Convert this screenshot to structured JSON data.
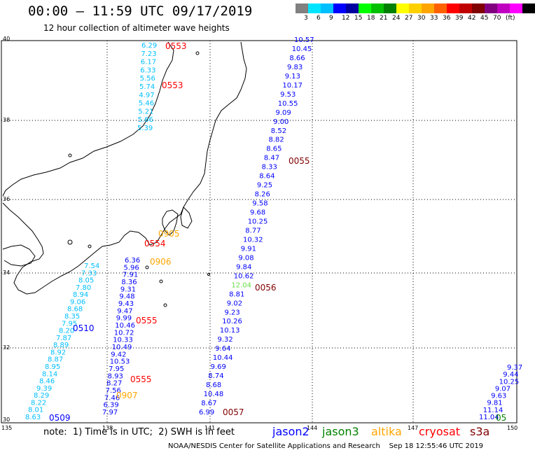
{
  "header": {
    "title": "00:00 – 11:59 UTC 09/17/2019",
    "subtitle": "12 hour collection of altimeter wave heights"
  },
  "legend": {
    "colors": [
      "#808080",
      "#00e5ff",
      "#00bfff",
      "#0000ff",
      "#0000a0",
      "#00ff00",
      "#00c000",
      "#008000",
      "#ffff00",
      "#ffd000",
      "#ffa500",
      "#ff6000",
      "#ff0000",
      "#c00000",
      "#800000",
      "#800080",
      "#c000c0",
      "#ff00ff",
      "#000000"
    ],
    "labels": [
      "3",
      "6",
      "9",
      "12",
      "15",
      "18",
      "21",
      "24",
      "27",
      "30",
      "33",
      "36",
      "39",
      "42",
      "45",
      "70",
      "(ft)"
    ]
  },
  "axes": {
    "lon_labels": [
      "135",
      "138",
      "141",
      "144",
      "147",
      "150"
    ],
    "lat_labels": [
      "40",
      "38",
      "36",
      "34",
      "32",
      "30"
    ]
  },
  "tracks": [
    {
      "color": "#00bfff",
      "values": [
        "6.29",
        "7.23",
        "6.17",
        "6.33",
        "5.56",
        "5.74",
        "4.97",
        "5.46",
        "5.21",
        "5.66",
        "5.39"
      ]
    },
    {
      "color": "#0000ff",
      "values": [
        "10.57",
        "10.45",
        "8.66",
        "9.83",
        "9.13",
        "10.17",
        "9.53",
        "10.55",
        "9.09",
        "9.00",
        "8.52",
        "8.82",
        "8.65",
        "8.47",
        "8.33",
        "8.64",
        "9.25",
        "8.26",
        "9.58",
        "9.68",
        "10.25",
        "8.77",
        "10.32",
        "9.91",
        "9.08",
        "9.84",
        "10.62",
        "12.04",
        "8.81",
        "9.02",
        "9.23",
        "10.26",
        "10.13",
        "9.32",
        "9.64",
        "10.44",
        "9.69",
        "8.74",
        "8.68",
        "10.48",
        "8.67",
        "6.99"
      ]
    },
    {
      "color": "#00bfff",
      "values": [
        "7.54",
        "7.33",
        "8.05",
        "7.80",
        "8.94",
        "9.06",
        "8.68",
        "8.35",
        "7.95",
        "8.20",
        "7.87",
        "8.89",
        "8.92",
        "8.87",
        "8.95",
        "8.14",
        "8.46",
        "9.39",
        "8.29",
        "8.22",
        "8.01",
        "8.63"
      ]
    },
    {
      "color": "#0000ff",
      "values": [
        "6.36",
        "5.96",
        "7.91",
        "8.36",
        "9.31",
        "9.48",
        "9.43",
        "9.47",
        "9.99",
        "10.46",
        "10.72",
        "10.33",
        "10.49",
        "9.42",
        "10.53",
        "7.95",
        "8.93",
        "8.27",
        "7.56",
        "7.46",
        "6.39",
        "7.97"
      ]
    },
    {
      "color": "#0000ff",
      "values": [
        "9.37",
        "9.44",
        "10.25",
        "9.07",
        "9.63",
        "9.81",
        "11.14",
        "11.04"
      ]
    }
  ],
  "pass_times": [
    {
      "time": "0553",
      "color": "#ff0000"
    },
    {
      "time": "0553",
      "color": "#ff0000"
    },
    {
      "time": "0055",
      "color": "#800000"
    },
    {
      "time": "0905",
      "color": "#ffa500"
    },
    {
      "time": "0554",
      "color": "#ff0000"
    },
    {
      "time": "0906",
      "color": "#ffa500"
    },
    {
      "time": "0056",
      "color": "#800000"
    },
    {
      "time": "0555",
      "color": "#ff0000"
    },
    {
      "time": "0510",
      "color": "#0000ff"
    },
    {
      "time": "0555",
      "color": "#ff0000"
    },
    {
      "time": "0907",
      "color": "#ffa500"
    },
    {
      "time": "0057",
      "color": "#800000"
    },
    {
      "time": "0509",
      "color": "#0000ff"
    },
    {
      "time": "05",
      "color": "#008000"
    }
  ],
  "footer": {
    "note": "note:  1) Time is in UTC;  2) SWH is in feet",
    "satellites": [
      {
        "name": "jason2",
        "color": "#0000ff"
      },
      {
        "name": "jason3",
        "color": "#008000"
      },
      {
        "name": "altika",
        "color": "#ffa500"
      },
      {
        "name": "cryosat",
        "color": "#ff0000"
      },
      {
        "name": "s3a",
        "color": "#800000"
      }
    ],
    "credit": "NOAA/NESDIS Center for Satellite Applications and Research    Sep 18 12:55:46 UTC 2019"
  }
}
